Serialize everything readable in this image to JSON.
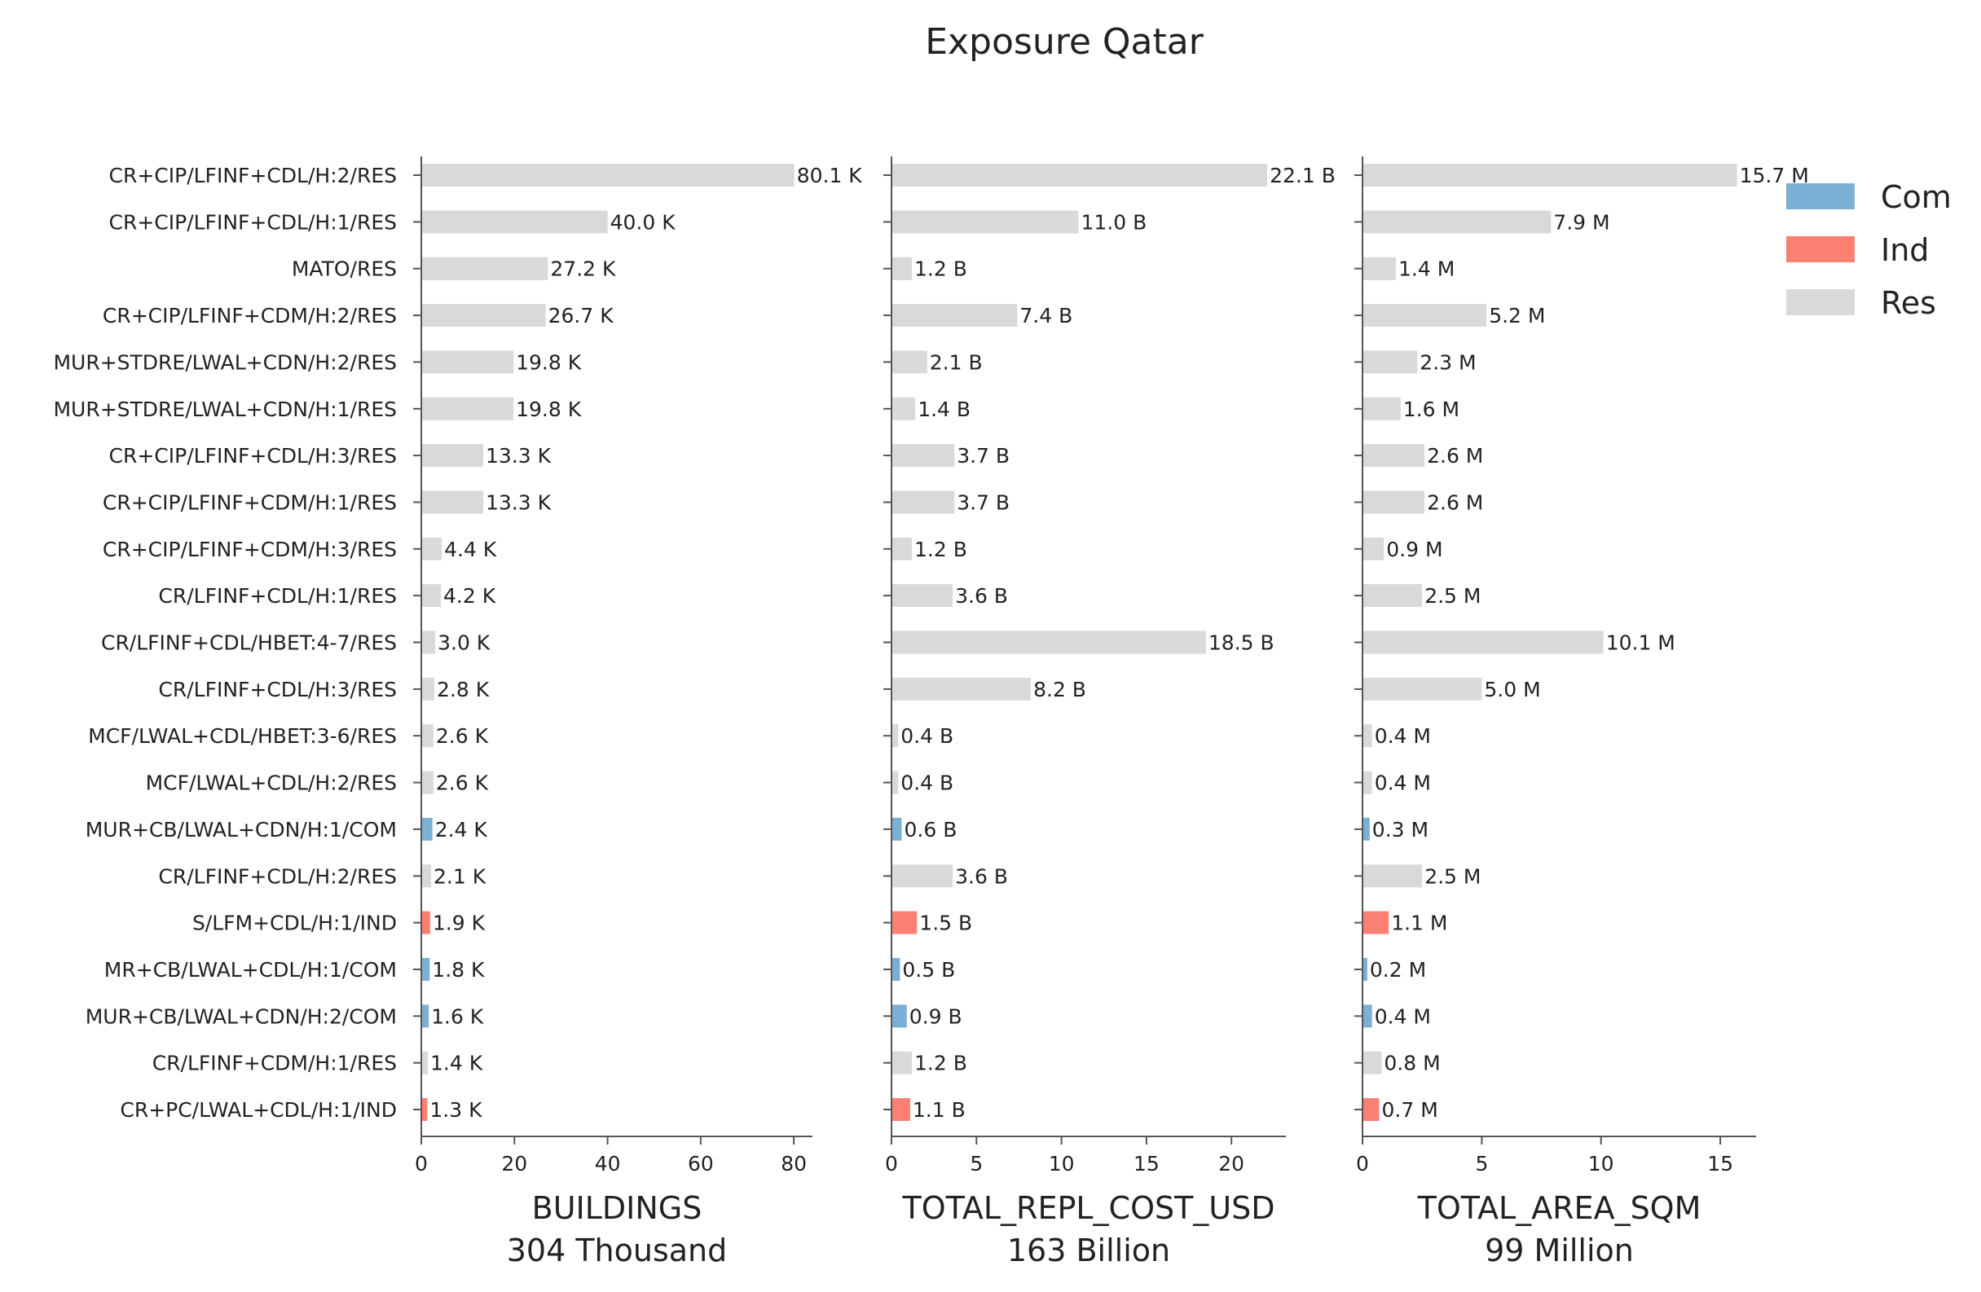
{
  "title": "Exposure Qatar",
  "colors": {
    "Com": "#7bafd4",
    "Ind": "#fa8072",
    "Res": "#d9d9d9"
  },
  "legend": [
    {
      "key": "Com",
      "label": "Com"
    },
    {
      "key": "Ind",
      "label": "Ind"
    },
    {
      "key": "Res",
      "label": "Res"
    }
  ],
  "chart_data": [
    {
      "type": "bar",
      "orientation": "horizontal",
      "xlabel": "BUILDINGS",
      "subtitle": "304 Thousand",
      "unit": "K",
      "xlim": [
        0,
        84
      ],
      "ticks": [
        0,
        20,
        40,
        60,
        80
      ],
      "categories": [
        "CR+CIP/LFINF+CDL/H:2/RES",
        "CR+CIP/LFINF+CDL/H:1/RES",
        "MATO/RES",
        "CR+CIP/LFINF+CDM/H:2/RES",
        "MUR+STDRE/LWAL+CDN/H:2/RES",
        "MUR+STDRE/LWAL+CDN/H:1/RES",
        "CR+CIP/LFINF+CDL/H:3/RES",
        "CR+CIP/LFINF+CDM/H:1/RES",
        "CR+CIP/LFINF+CDM/H:3/RES",
        "CR/LFINF+CDL/H:1/RES",
        "CR/LFINF+CDL/HBET:4-7/RES",
        "CR/LFINF+CDL/H:3/RES",
        "MCF/LWAL+CDL/HBET:3-6/RES",
        "MCF/LWAL+CDL/H:2/RES",
        "MUR+CB/LWAL+CDN/H:1/COM",
        "CR/LFINF+CDL/H:2/RES",
        "S/LFM+CDL/H:1/IND",
        "MR+CB/LWAL+CDL/H:1/COM",
        "MUR+CB/LWAL+CDN/H:2/COM",
        "CR/LFINF+CDM/H:1/RES",
        "CR+PC/LWAL+CDL/H:1/IND"
      ],
      "groups": [
        "Res",
        "Res",
        "Res",
        "Res",
        "Res",
        "Res",
        "Res",
        "Res",
        "Res",
        "Res",
        "Res",
        "Res",
        "Res",
        "Res",
        "Com",
        "Res",
        "Ind",
        "Com",
        "Com",
        "Res",
        "Ind"
      ],
      "values": [
        80.1,
        40.0,
        27.2,
        26.7,
        19.8,
        19.8,
        13.3,
        13.3,
        4.4,
        4.2,
        3.0,
        2.8,
        2.6,
        2.6,
        2.4,
        2.1,
        1.9,
        1.8,
        1.6,
        1.4,
        1.3
      ],
      "labels": [
        "80.1 K",
        "40.0 K",
        "27.2 K",
        "26.7 K",
        "19.8 K",
        "19.8 K",
        "13.3 K",
        "13.3 K",
        "4.4 K",
        "4.2 K",
        "3.0 K",
        "2.8 K",
        "2.6 K",
        "2.6 K",
        "2.4 K",
        "2.1 K",
        "1.9 K",
        "1.8 K",
        "1.6 K",
        "1.4 K",
        "1.3 K"
      ]
    },
    {
      "type": "bar",
      "orientation": "horizontal",
      "xlabel": "TOTAL_REPL_COST_USD",
      "subtitle": "163 Billion",
      "unit": "B",
      "xlim": [
        0,
        23.2
      ],
      "ticks": [
        0,
        5,
        10,
        15,
        20
      ],
      "values": [
        22.1,
        11.0,
        1.2,
        7.4,
        2.1,
        1.4,
        3.7,
        3.7,
        1.2,
        3.6,
        18.5,
        8.2,
        0.4,
        0.4,
        0.6,
        3.6,
        1.5,
        0.5,
        0.9,
        1.2,
        1.1
      ],
      "labels": [
        "22.1 B",
        "11.0 B",
        "1.2 B",
        "7.4 B",
        "2.1 B",
        "1.4 B",
        "3.7 B",
        "3.7 B",
        "1.2 B",
        "3.6 B",
        "18.5 B",
        "8.2 B",
        "0.4 B",
        "0.4 B",
        "0.6 B",
        "3.6 B",
        "1.5 B",
        "0.5 B",
        "0.9 B",
        "1.2 B",
        "1.1 B"
      ]
    },
    {
      "type": "bar",
      "orientation": "horizontal",
      "xlabel": "TOTAL_AREA_SQM",
      "subtitle": "99 Million",
      "unit": "M",
      "xlim": [
        0,
        16.5
      ],
      "ticks": [
        0,
        5,
        10,
        15
      ],
      "values": [
        15.7,
        7.9,
        1.4,
        5.2,
        2.3,
        1.6,
        2.6,
        2.6,
        0.9,
        2.5,
        10.1,
        5.0,
        0.4,
        0.4,
        0.3,
        2.5,
        1.1,
        0.2,
        0.4,
        0.8,
        0.7
      ],
      "labels": [
        "15.7 M",
        "7.9 M",
        "1.4 M",
        "5.2 M",
        "2.3 M",
        "1.6 M",
        "2.6 M",
        "2.6 M",
        "0.9 M",
        "2.5 M",
        "10.1 M",
        "5.0 M",
        "0.4 M",
        "0.4 M",
        "0.3 M",
        "2.5 M",
        "1.1 M",
        "0.2 M",
        "0.4 M",
        "0.8 M",
        "0.7 M"
      ]
    }
  ]
}
